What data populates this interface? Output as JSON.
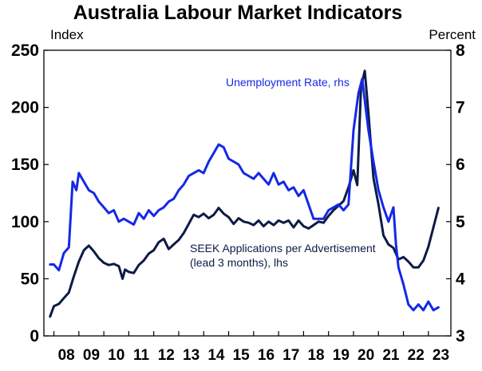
{
  "chart_data": {
    "type": "line",
    "title": "Australia Labour Market Indicators",
    "ylabel_left": "Index",
    "ylabel_right": "Percent",
    "xlim": [
      2007.6,
      2023.9
    ],
    "ylim_left": [
      0,
      250
    ],
    "ylim_right": [
      3,
      8
    ],
    "yticks_left": [
      "0",
      "50",
      "100",
      "150",
      "200",
      "250"
    ],
    "yticks_right": [
      "3",
      "4",
      "5",
      "6",
      "7",
      "8"
    ],
    "xticks": [
      {
        "label": "08",
        "x": 2008
      },
      {
        "label": "09",
        "x": 2009
      },
      {
        "label": "10",
        "x": 2010
      },
      {
        "label": "11",
        "x": 2011
      },
      {
        "label": "12",
        "x": 2012
      },
      {
        "label": "13",
        "x": 2013
      },
      {
        "label": "14",
        "x": 2014
      },
      {
        "label": "15",
        "x": 2015
      },
      {
        "label": "16",
        "x": 2016
      },
      {
        "label": "17",
        "x": 2017
      },
      {
        "label": "18",
        "x": 2018
      },
      {
        "label": "19",
        "x": 2019
      },
      {
        "label": "20",
        "x": 2020
      },
      {
        "label": "21",
        "x": 2021
      },
      {
        "label": "22",
        "x": 2022
      },
      {
        "label": "23",
        "x": 2023
      }
    ],
    "grid": false,
    "series": [
      {
        "name": "SEEK Applications per Advertisement (lead 3 months), lhs",
        "axis": "left",
        "color": "#0d1b45",
        "x": [
          2007.85,
          2008.0,
          2008.2,
          2008.4,
          2008.6,
          2008.8,
          2009.0,
          2009.2,
          2009.4,
          2009.6,
          2009.8,
          2010.0,
          2010.2,
          2010.4,
          2010.6,
          2010.75,
          2010.85,
          2011.0,
          2011.2,
          2011.4,
          2011.6,
          2011.8,
          2012.0,
          2012.2,
          2012.4,
          2012.6,
          2012.8,
          2013.0,
          2013.2,
          2013.4,
          2013.6,
          2013.8,
          2014.0,
          2014.2,
          2014.4,
          2014.6,
          2014.8,
          2015.0,
          2015.2,
          2015.4,
          2015.6,
          2015.8,
          2016.0,
          2016.2,
          2016.4,
          2016.6,
          2016.8,
          2017.0,
          2017.2,
          2017.4,
          2017.6,
          2017.8,
          2018.0,
          2018.2,
          2018.4,
          2018.6,
          2018.8,
          2019.0,
          2019.2,
          2019.4,
          2019.6,
          2019.8,
          2020.0,
          2020.15,
          2020.3,
          2020.45,
          2020.6,
          2020.8,
          2021.0,
          2021.2,
          2021.4,
          2021.6,
          2021.8,
          2022.0,
          2022.2,
          2022.4,
          2022.6,
          2022.8,
          2023.0,
          2023.2,
          2023.4
        ],
        "values": [
          17,
          26,
          28,
          33,
          38,
          52,
          65,
          75,
          79,
          74,
          68,
          64,
          62,
          63,
          61,
          50,
          58,
          56,
          55,
          62,
          66,
          72,
          75,
          82,
          85,
          76,
          80,
          84,
          90,
          98,
          106,
          104,
          107,
          103,
          106,
          112,
          107,
          104,
          98,
          103,
          100,
          99,
          97,
          101,
          96,
          100,
          97,
          101,
          99,
          101,
          95,
          101,
          96,
          94,
          97,
          100,
          99,
          105,
          110,
          114,
          118,
          130,
          145,
          132,
          218,
          232,
          195,
          138,
          115,
          88,
          80,
          77,
          67,
          69,
          65,
          60,
          60,
          66,
          78,
          95,
          112
        ]
      },
      {
        "name": "Unemployment Rate, rhs",
        "axis": "right",
        "color": "#1428e6",
        "x": [
          2007.85,
          2008.0,
          2008.2,
          2008.4,
          2008.6,
          2008.75,
          2008.9,
          2009.0,
          2009.2,
          2009.4,
          2009.6,
          2009.8,
          2010.0,
          2010.2,
          2010.4,
          2010.6,
          2010.8,
          2011.0,
          2011.2,
          2011.4,
          2011.6,
          2011.8,
          2012.0,
          2012.2,
          2012.4,
          2012.6,
          2012.8,
          2013.0,
          2013.2,
          2013.4,
          2013.6,
          2013.8,
          2014.0,
          2014.2,
          2014.4,
          2014.6,
          2014.8,
          2015.0,
          2015.2,
          2015.4,
          2015.6,
          2015.8,
          2016.0,
          2016.2,
          2016.4,
          2016.6,
          2016.8,
          2017.0,
          2017.2,
          2017.4,
          2017.6,
          2017.8,
          2018.0,
          2018.2,
          2018.4,
          2018.6,
          2018.8,
          2019.0,
          2019.2,
          2019.4,
          2019.6,
          2019.8,
          2020.0,
          2020.2,
          2020.35,
          2020.5,
          2020.6,
          2020.8,
          2021.0,
          2021.2,
          2021.4,
          2021.6,
          2021.7,
          2021.8,
          2022.0,
          2022.2,
          2022.4,
          2022.6,
          2022.8,
          2023.0,
          2023.2,
          2023.4
        ],
        "values": [
          4.25,
          4.25,
          4.15,
          4.45,
          4.55,
          5.7,
          5.55,
          5.85,
          5.7,
          5.55,
          5.5,
          5.35,
          5.25,
          5.15,
          5.2,
          5.0,
          5.05,
          5.0,
          4.95,
          5.15,
          5.05,
          5.2,
          5.1,
          5.2,
          5.25,
          5.35,
          5.4,
          5.55,
          5.65,
          5.8,
          5.85,
          5.9,
          5.85,
          6.05,
          6.2,
          6.35,
          6.3,
          6.1,
          6.05,
          6.0,
          5.85,
          5.8,
          5.75,
          5.85,
          5.75,
          5.65,
          5.85,
          5.65,
          5.7,
          5.55,
          5.6,
          5.45,
          5.55,
          5.3,
          5.05,
          5.05,
          5.05,
          5.2,
          5.25,
          5.3,
          5.2,
          5.3,
          6.6,
          7.25,
          7.5,
          6.95,
          6.6,
          6.05,
          5.55,
          5.25,
          5.0,
          5.25,
          4.6,
          4.2,
          3.9,
          3.55,
          3.45,
          3.55,
          3.45,
          3.6,
          3.45,
          3.5
        ]
      }
    ],
    "annotations": [
      {
        "text": "Unemployment Rate, rhs",
        "series": 1
      },
      {
        "text": "SEEK Applications per Advertisement",
        "series": 0
      },
      {
        "text": "(lead 3 months), lhs",
        "series": 0
      }
    ]
  }
}
